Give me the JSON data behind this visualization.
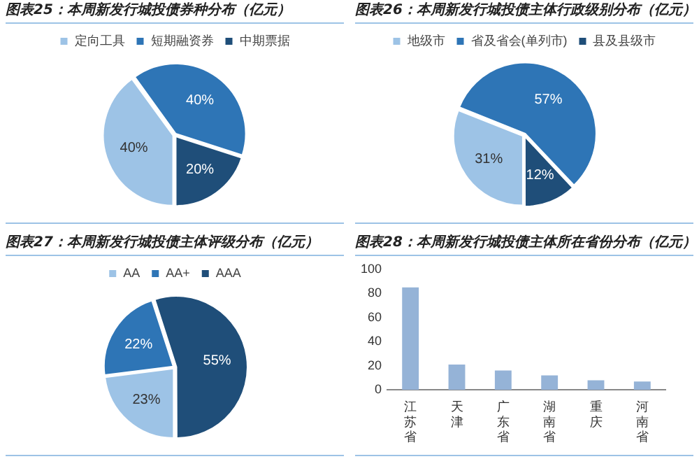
{
  "chart_data": [
    {
      "type": "pie",
      "title": "图表25：本周新发行城投债券种分布（亿元）",
      "categories": [
        "定向工具",
        "短期融资券",
        "中期票据"
      ],
      "values": [
        40,
        40,
        20
      ],
      "colors": [
        "#9dc3e6",
        "#2e75b6",
        "#1f4e79"
      ],
      "value_labels": [
        "40%",
        "40%",
        "20%"
      ],
      "legend": "top"
    },
    {
      "type": "pie",
      "title": "图表26：本周新发行城投债主体行政级别分布（亿元）",
      "categories": [
        "地级市",
        "省及省会(单列市)",
        "县及县级市"
      ],
      "values": [
        31,
        57,
        12
      ],
      "colors": [
        "#9dc3e6",
        "#2e75b6",
        "#1f4e79"
      ],
      "value_labels": [
        "31%",
        "57%",
        "12%"
      ],
      "legend": "top"
    },
    {
      "type": "pie",
      "title": "图表27：本周新发行城投债主体评级分布（亿元）",
      "categories": [
        "AA",
        "AA+",
        "AAA"
      ],
      "values": [
        23,
        22,
        55
      ],
      "colors": [
        "#9dc3e6",
        "#2e75b6",
        "#1f4e79"
      ],
      "value_labels": [
        "23%",
        "22%",
        "55%"
      ],
      "legend": "top"
    },
    {
      "type": "bar",
      "title": "图表28：本周新发行城投债主体所在省份分布（亿元）",
      "categories": [
        "江苏省",
        "天津",
        "广东省",
        "湖南省",
        "重庆",
        "河南省"
      ],
      "values": [
        85,
        21,
        16,
        12,
        8,
        7
      ],
      "color": "#95b3d7",
      "ylim": [
        0,
        100
      ],
      "yticks": [
        0,
        20,
        40,
        60,
        80,
        100
      ],
      "grid": false,
      "legend": false
    }
  ]
}
